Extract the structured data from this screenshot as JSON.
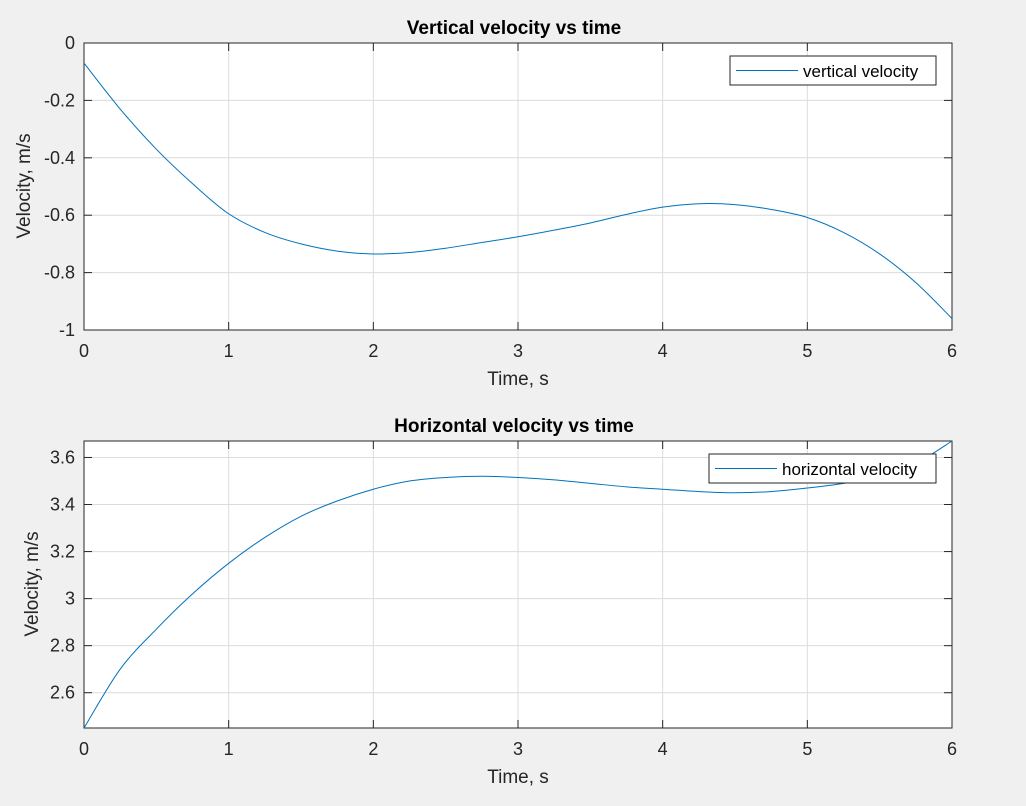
{
  "colors": {
    "figure_bg": "#f0f0f0",
    "axes_bg": "#ffffff",
    "line": "#0072bd",
    "grid": "#dcdcdc",
    "axis": "#262626"
  },
  "chart_data": [
    {
      "type": "line",
      "title": "Vertical velocity vs time",
      "xlabel": "Time, s",
      "ylabel": "Velocity, m/s",
      "xlim": [
        0,
        6
      ],
      "ylim": [
        -1,
        0
      ],
      "xticks": [
        0,
        1,
        2,
        3,
        4,
        5,
        6
      ],
      "xtick_labels": [
        "0",
        "1",
        "2",
        "3",
        "4",
        "5",
        "6"
      ],
      "yticks": [
        -1,
        -0.8,
        -0.6,
        -0.4,
        -0.2,
        0
      ],
      "ytick_labels": [
        "-1",
        "-0.8",
        "-0.6",
        "-0.4",
        "-0.2",
        "0"
      ],
      "grid": true,
      "legend_position": "top-right",
      "series": [
        {
          "name": "vertical velocity",
          "x": [
            0,
            0.25,
            0.5,
            0.75,
            1,
            1.25,
            1.5,
            1.75,
            2,
            2.25,
            2.5,
            2.75,
            3,
            3.25,
            3.5,
            3.75,
            4,
            4.25,
            4.5,
            4.75,
            5,
            5.25,
            5.5,
            5.75,
            6
          ],
          "y": [
            -0.07,
            -0.23,
            -0.37,
            -0.49,
            -0.595,
            -0.66,
            -0.7,
            -0.725,
            -0.735,
            -0.73,
            -0.715,
            -0.695,
            -0.675,
            -0.652,
            -0.627,
            -0.597,
            -0.572,
            -0.56,
            -0.563,
            -0.58,
            -0.608,
            -0.66,
            -0.735,
            -0.835,
            -0.96
          ]
        }
      ]
    },
    {
      "type": "line",
      "title": "Horizontal velocity vs time",
      "xlabel": "Time, s",
      "ylabel": "Velocity, m/s",
      "xlim": [
        0,
        6
      ],
      "ylim": [
        2.45,
        3.67
      ],
      "xticks": [
        0,
        1,
        2,
        3,
        4,
        5,
        6
      ],
      "xtick_labels": [
        "0",
        "1",
        "2",
        "3",
        "4",
        "5",
        "6"
      ],
      "yticks": [
        2.6,
        2.8,
        3,
        3.2,
        3.4,
        3.6
      ],
      "ytick_labels": [
        "2.6",
        "2.8",
        "3",
        "3.2",
        "3.4",
        "3.6"
      ],
      "grid": true,
      "legend_position": "top-right",
      "series": [
        {
          "name": "horizontal velocity",
          "x": [
            0,
            0.25,
            0.5,
            0.75,
            1,
            1.25,
            1.5,
            1.75,
            2,
            2.25,
            2.5,
            2.75,
            3,
            3.25,
            3.5,
            3.75,
            4,
            4.25,
            4.5,
            4.75,
            5,
            5.25,
            5.5,
            5.75,
            6
          ],
          "y": [
            2.45,
            2.7,
            2.87,
            3.02,
            3.15,
            3.26,
            3.35,
            3.415,
            3.465,
            3.5,
            3.515,
            3.52,
            3.515,
            3.505,
            3.49,
            3.475,
            3.465,
            3.455,
            3.45,
            3.455,
            3.47,
            3.49,
            3.52,
            3.575,
            3.67
          ]
        }
      ]
    }
  ]
}
